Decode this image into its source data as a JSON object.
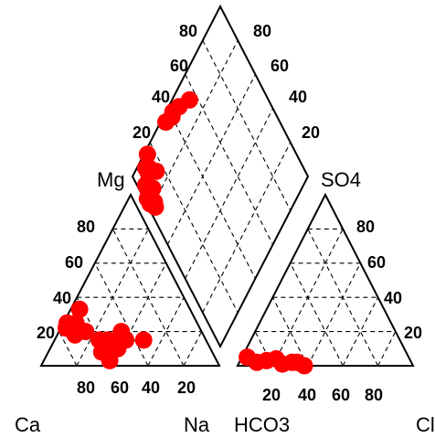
{
  "chart_data": {
    "type": "scatter",
    "subtype": "piper-diagram",
    "title": "",
    "point_color": "#ff0000",
    "grid": true,
    "grid_style": "dashed",
    "cation_triangle": {
      "corners": {
        "bottom_left": "Ca",
        "bottom_right": "Na",
        "top": "Mg"
      },
      "left_ticks": [
        "80",
        "60",
        "40",
        "20"
      ],
      "bottom_ticks": [
        "80",
        "60",
        "40",
        "20"
      ],
      "points": [
        {
          "Ca": 75,
          "Mg": 22,
          "Na": 3
        },
        {
          "Ca": 73,
          "Mg": 25,
          "Na": 2
        },
        {
          "Ca": 72,
          "Mg": 18,
          "Na": 10
        },
        {
          "Ca": 70,
          "Mg": 22,
          "Na": 8
        },
        {
          "Ca": 68,
          "Mg": 25,
          "Na": 7
        },
        {
          "Ca": 65,
          "Mg": 20,
          "Na": 15
        },
        {
          "Ca": 62,
          "Mg": 33,
          "Na": 5
        },
        {
          "Ca": 60,
          "Mg": 15,
          "Na": 25
        },
        {
          "Ca": 62,
          "Mg": 8,
          "Na": 30
        },
        {
          "Ca": 60,
          "Mg": 3,
          "Na": 37
        },
        {
          "Ca": 55,
          "Mg": 15,
          "Na": 30
        },
        {
          "Ca": 53,
          "Mg": 13,
          "Na": 34
        },
        {
          "Ca": 52,
          "Mg": 10,
          "Na": 38
        },
        {
          "Ca": 45,
          "Mg": 20,
          "Na": 35
        },
        {
          "Ca": 45,
          "Mg": 15,
          "Na": 40
        },
        {
          "Ca": 35,
          "Mg": 15,
          "Na": 50
        }
      ]
    },
    "anion_triangle": {
      "corners": {
        "bottom_left": "HCO3",
        "bottom_right": "Cl",
        "top": "SO4"
      },
      "right_ticks": [
        "80",
        "60",
        "40",
        "20"
      ],
      "bottom_ticks": [
        "20",
        "40",
        "60",
        "80"
      ],
      "points": [
        {
          "HCO3": 92,
          "SO4": 5,
          "Cl": 3
        },
        {
          "HCO3": 88,
          "SO4": 2,
          "Cl": 10
        },
        {
          "HCO3": 82,
          "SO4": 3,
          "Cl": 15
        },
        {
          "HCO3": 76,
          "SO4": 4,
          "Cl": 20
        },
        {
          "HCO3": 74,
          "SO4": 1,
          "Cl": 25
        },
        {
          "HCO3": 68,
          "SO4": 2,
          "Cl": 30
        },
        {
          "HCO3": 65,
          "SO4": 2,
          "Cl": 33
        },
        {
          "HCO3": 62,
          "SO4": 0,
          "Cl": 38
        }
      ]
    },
    "diamond": {
      "left_label": "Mg",
      "right_label": "SO4",
      "left_ticks": [
        "80",
        "60",
        "40",
        "20"
      ],
      "right_ticks": [
        "80",
        "60",
        "40",
        "20"
      ],
      "points": [
        {
          "SO4": 10,
          "Mg": 5
        },
        {
          "SO4": 8,
          "Mg": 10
        },
        {
          "SO4": 15,
          "Mg": 2
        },
        {
          "SO4": 12,
          "Mg": 5
        },
        {
          "SO4": 5,
          "Mg": 10
        },
        {
          "SO4": 18,
          "Mg": 2
        },
        {
          "SO4": 20,
          "Mg": 5
        },
        {
          "SO4": 15,
          "Mg": 8
        },
        {
          "SO4": 7,
          "Mg": 12
        },
        {
          "SO4": 22,
          "Mg": 4
        },
        {
          "SO4": 12,
          "Mg": 15
        },
        {
          "SO4": 2,
          "Mg": 15
        },
        {
          "SO4": 3,
          "Mg": 35
        },
        {
          "SO4": 5,
          "Mg": 40
        },
        {
          "SO4": 4,
          "Mg": 42
        },
        {
          "SO4": 6,
          "Mg": 47
        },
        {
          "SO4": 10,
          "Mg": 55
        }
      ]
    }
  }
}
